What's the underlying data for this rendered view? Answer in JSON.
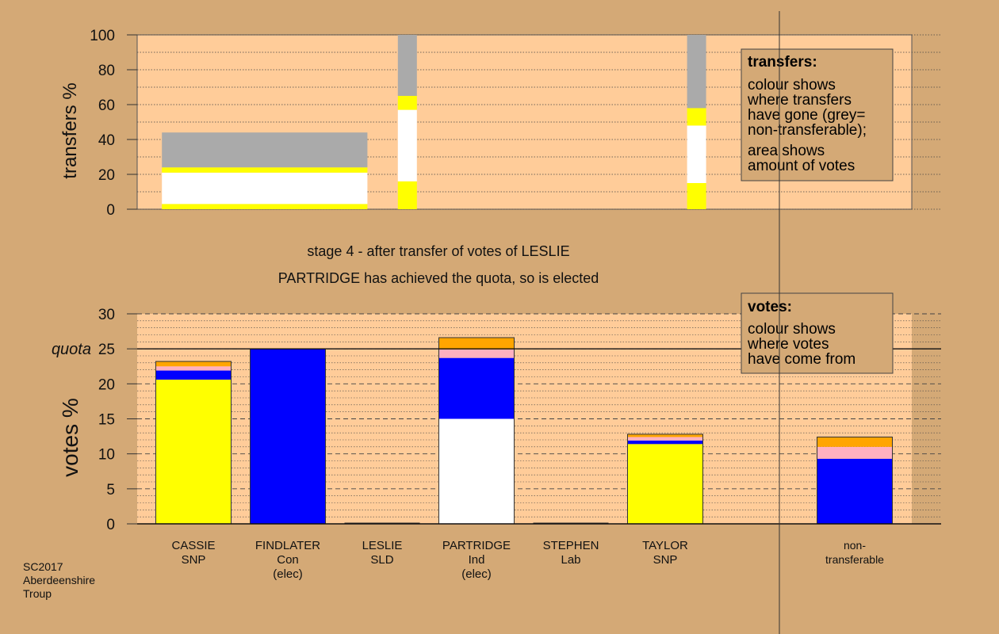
{
  "chart_data": {
    "type": "bar",
    "colors": {
      "page_bg": "#D4A976",
      "plot_bg": "#FFCC99",
      "snp": "#FFFF00",
      "con": "#0000FF",
      "sld": "#FFA500",
      "ind": "#FFFFFF",
      "lab": "#FFB0C0",
      "non_transferable": "#AAAAAA"
    },
    "transfers": {
      "ylabel": "transfers %",
      "ylim": [
        0,
        100
      ],
      "yticks": [
        "0",
        "20",
        "40",
        "60",
        "80",
        "100"
      ],
      "series_segments": [
        {
          "name": "SNP",
          "color": "#FFFF00"
        },
        {
          "name": "Ind",
          "color": "#FFFFFF"
        },
        {
          "name": "SNP",
          "color": "#FFFF00"
        },
        {
          "name": "non-transferable",
          "color": "#AAAAAA"
        }
      ],
      "bars": [
        {
          "x_from": 0.2,
          "x_to": 2.9,
          "segments": [
            {
              "from": 0,
              "to": 3,
              "color": "#FFFF00"
            },
            {
              "from": 3,
              "to": 21,
              "color": "#FFFFFF"
            },
            {
              "from": 21,
              "to": 24,
              "color": "#FFFF00"
            },
            {
              "from": 24,
              "to": 44,
              "color": "#AAAAAA"
            }
          ]
        },
        {
          "x_from": 3.3,
          "x_to": 3.55,
          "segments": [
            {
              "from": 0,
              "to": 16,
              "color": "#FFFF00"
            },
            {
              "from": 16,
              "to": 57,
              "color": "#FFFFFF"
            },
            {
              "from": 57,
              "to": 65,
              "color": "#FFFF00"
            },
            {
              "from": 65,
              "to": 100,
              "color": "#AAAAAA"
            }
          ]
        },
        {
          "x_from": 7.1,
          "x_to": 7.35,
          "segments": [
            {
              "from": 0,
              "to": 15,
              "color": "#FFFF00"
            },
            {
              "from": 15,
              "to": 48,
              "color": "#FFFFFF"
            },
            {
              "from": 48,
              "to": 58,
              "color": "#FFFF00"
            },
            {
              "from": 58,
              "to": 100,
              "color": "#AAAAAA"
            }
          ]
        }
      ],
      "legend": {
        "title": "transfers:",
        "lines1": [
          "colour shows",
          "where transfers",
          "have gone (grey=",
          "non-transferable);"
        ],
        "lines2": [
          "area shows",
          "amount of votes"
        ]
      }
    },
    "stage_title": "stage 4 - after transfer of votes of LESLIE",
    "stage_subtitle": "PARTRIDGE has achieved the quota, so is elected",
    "votes": {
      "ylabel": "votes %",
      "ylim": [
        0,
        30
      ],
      "yticks": [
        "0",
        "5",
        "10",
        "15",
        "20",
        "25",
        "30"
      ],
      "quota": 25,
      "quota_label": "quota",
      "categories": [
        {
          "lines": [
            "CASSIE",
            "SNP"
          ]
        },
        {
          "lines": [
            "FINDLATER",
            "Con",
            "(elec)"
          ]
        },
        {
          "lines": [
            "LESLIE",
            "SLD"
          ]
        },
        {
          "lines": [
            "PARTRIDGE",
            "Ind",
            "(elec)"
          ]
        },
        {
          "lines": [
            "STEPHEN",
            "Lab"
          ]
        },
        {
          "lines": [
            "TAYLOR",
            "SNP"
          ]
        },
        {
          "lines": [
            "non-",
            "transferable"
          ]
        }
      ],
      "stacks": [
        [
          {
            "value": 20.6,
            "color": "#FFFF00"
          },
          {
            "value": 1.3,
            "color": "#0000FF"
          },
          {
            "value": 0.6,
            "color": "#FFB0C0"
          },
          {
            "value": 0.7,
            "color": "#FFA500"
          }
        ],
        [
          {
            "value": 25.0,
            "color": "#0000FF"
          }
        ],
        [
          {
            "value": 0,
            "color": "#FFA500"
          }
        ],
        [
          {
            "value": 15.0,
            "color": "#FFFFFF"
          },
          {
            "value": 8.7,
            "color": "#0000FF"
          },
          {
            "value": 1.2,
            "color": "#FFB0C0"
          },
          {
            "value": 1.7,
            "color": "#FFA500"
          }
        ],
        [
          {
            "value": 0,
            "color": "#FFB0C0"
          }
        ],
        [
          {
            "value": 11.4,
            "color": "#FFFF00"
          },
          {
            "value": 0.5,
            "color": "#0000FF"
          },
          {
            "value": 0.5,
            "color": "#FFB0C0"
          },
          {
            "value": 0.4,
            "color": "#FFA500"
          }
        ],
        [
          {
            "value": 9.3,
            "color": "#0000FF"
          },
          {
            "value": 1.7,
            "color": "#FFB0C0"
          },
          {
            "value": 1.4,
            "color": "#FFA500"
          }
        ]
      ],
      "legend": {
        "title": "votes:",
        "lines": [
          "colour shows",
          "where votes",
          "have come from"
        ]
      }
    },
    "footer": [
      "SC2017",
      "Aberdeenshire",
      "Troup"
    ]
  }
}
